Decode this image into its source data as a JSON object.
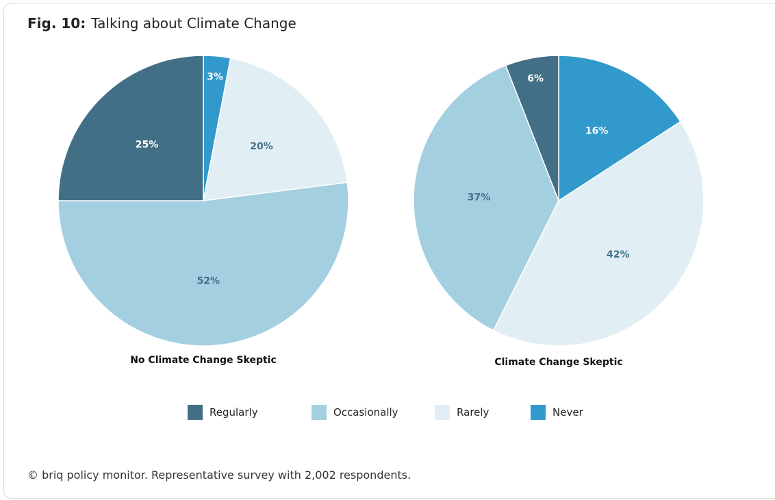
{
  "title": {
    "fig": "Fig. 10:",
    "text": "Talking about Climate Change"
  },
  "footer": "© briq policy monitor. Representative survey with 2,002 respondents.",
  "colors": {
    "Regularly": "#436f86",
    "Occasionally": "#a3cfe1",
    "Rarely": "#e1eff4",
    "Never": "#3199cb",
    "label_dark": "#ffffff",
    "label_light": "#436f86"
  },
  "legend": [
    "Regularly",
    "Occasionally",
    "Rarely",
    "Never"
  ],
  "chart_data": [
    {
      "type": "pie",
      "title": "No Climate Change Skeptic",
      "slices": [
        {
          "name": "Never",
          "value": 3,
          "label": "3%"
        },
        {
          "name": "Rarely",
          "value": 20,
          "label": "20%"
        },
        {
          "name": "Occasionally",
          "value": 52,
          "label": "52%"
        },
        {
          "name": "Regularly",
          "value": 25,
          "label": "25%"
        }
      ]
    },
    {
      "type": "pie",
      "title": "Climate Change Skeptic",
      "slices": [
        {
          "name": "Never",
          "value": 16,
          "label": "16%"
        },
        {
          "name": "Rarely",
          "value": 42,
          "label": "42%"
        },
        {
          "name": "Occasionally",
          "value": 37,
          "label": "37%"
        },
        {
          "name": "Regularly",
          "value": 6,
          "label": "6%"
        }
      ]
    }
  ]
}
